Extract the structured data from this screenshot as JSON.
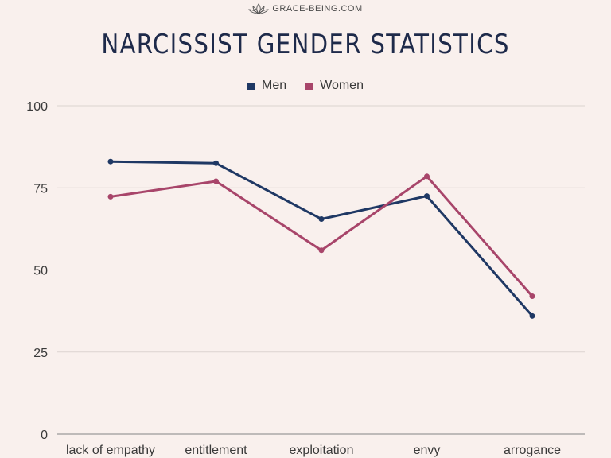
{
  "brand": {
    "name": "GRACE-BEING.COM",
    "icon": "lotus-icon"
  },
  "chart_data": {
    "type": "line",
    "title": "NARCISSIST GENDER STATISTICS",
    "categories": [
      "lack of empathy",
      "entitlement",
      "exploitation",
      "envy",
      "arrogance"
    ],
    "series": [
      {
        "name": "Men",
        "color": "#1f3864",
        "values": [
          83,
          82.5,
          65.5,
          72.5,
          36
        ]
      },
      {
        "name": "Women",
        "color": "#a8456a",
        "values": [
          72.3,
          77,
          56,
          78.5,
          42
        ]
      }
    ],
    "ylim": [
      0,
      100
    ],
    "yticks": [
      0,
      25,
      50,
      75,
      100
    ],
    "grid": true,
    "legend": "top-center",
    "xlabel": "",
    "ylabel": ""
  }
}
